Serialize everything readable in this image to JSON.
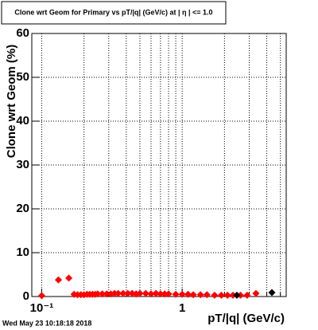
{
  "chart_data": {
    "type": "scatter",
    "title": "Clone wrt Geom for Primary vs pT/|q| (GeV/c) at | η | <= 1.0",
    "x_label": "pT/|q| (GeV/c)",
    "y_label": "Clone wrt Geom (%)",
    "timestamp": "Wed May 23 10:18:18 2018",
    "log_x": true,
    "grid": true,
    "xlim": [
      0.085,
      5.5
    ],
    "ylim": [
      0,
      60
    ],
    "xticks": [
      {
        "value": 0.1,
        "label": "10⁻¹"
      },
      1
    ],
    "xminor": [
      0.2,
      0.3,
      0.4,
      0.5,
      0.6,
      0.7,
      0.8,
      0.9,
      2,
      3,
      4,
      5
    ],
    "yticks": [
      0,
      10,
      20,
      30,
      40,
      50,
      60
    ],
    "series": [
      {
        "color": "#ff0000",
        "x": [
          0.1,
          0.1315,
          0.156,
          0.17,
          0.18,
          0.19,
          0.2,
          0.21,
          0.22,
          0.23,
          0.24,
          0.25,
          0.27,
          0.29,
          0.31,
          0.33,
          0.35,
          0.38,
          0.41,
          0.44,
          0.47,
          0.5,
          0.55,
          0.6,
          0.65,
          0.7,
          0.75,
          0.8,
          0.9,
          1.0,
          1.1,
          1.2,
          1.35,
          1.5,
          1.7,
          1.9,
          2.1,
          2.3,
          2.6,
          2.9,
          3.35
        ],
        "values": [
          0.2,
          3.8,
          4.2,
          0.5,
          0.4,
          0.4,
          0.4,
          0.5,
          0.5,
          0.5,
          0.5,
          0.6,
          0.6,
          0.6,
          0.6,
          0.7,
          0.7,
          0.7,
          0.7,
          0.7,
          0.6,
          0.7,
          0.7,
          0.6,
          0.7,
          0.6,
          0.6,
          0.6,
          0.5,
          0.5,
          0.5,
          0.4,
          0.4,
          0.4,
          0.3,
          0.3,
          0.3,
          0.3,
          0.3,
          0.3,
          0.7
        ]
      },
      {
        "color": "#000000",
        "x": [
          2.45,
          4.35
        ],
        "values": [
          0.3,
          0.9
        ]
      }
    ]
  }
}
